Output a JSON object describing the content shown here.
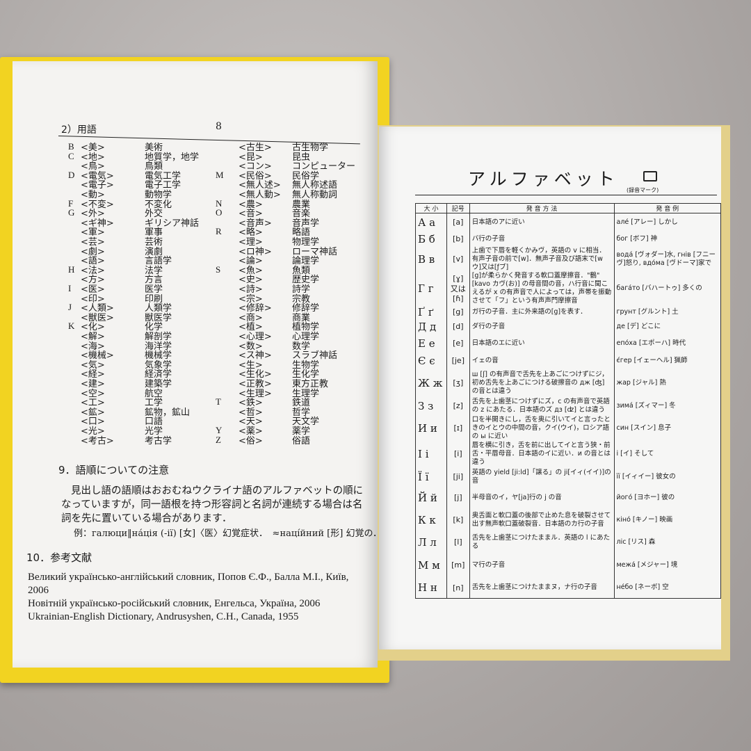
{
  "left_page": {
    "page_number": "8",
    "section_heading": "2）用語",
    "column_1": [
      {
        "letter": "B",
        "abbr": "<美>",
        "meaning": "美術"
      },
      {
        "letter": "C",
        "abbr": "<地>",
        "meaning": "地質学，地学"
      },
      {
        "abbr": "<鳥>",
        "meaning": "鳥類"
      },
      {
        "letter": "D",
        "abbr": "<電気>",
        "meaning": "電気工学"
      },
      {
        "abbr": "<電子>",
        "meaning": "電子工学"
      },
      {
        "abbr": "<動>",
        "meaning": "動物学"
      },
      {
        "letter": "F",
        "abbr": "<不変>",
        "meaning": "不変化"
      },
      {
        "letter": "G",
        "abbr": "<外>",
        "meaning": "外交"
      },
      {
        "abbr": "<ギ神>",
        "meaning": "ギリシア神話"
      },
      {
        "abbr": "<軍>",
        "meaning": "軍事"
      },
      {
        "abbr": "<芸>",
        "meaning": "芸術"
      },
      {
        "abbr": "<劇>",
        "meaning": "演劇"
      },
      {
        "abbr": "<語>",
        "meaning": "言語学"
      },
      {
        "letter": "H",
        "abbr": "<法>",
        "meaning": "法学"
      },
      {
        "abbr": "<方>",
        "meaning": "方言"
      },
      {
        "letter": "I",
        "abbr": "<医>",
        "meaning": "医学"
      },
      {
        "abbr": "<印>",
        "meaning": "印刷"
      },
      {
        "letter": "J",
        "abbr": "<人類>",
        "meaning": "人類学"
      },
      {
        "abbr": "<獣医>",
        "meaning": "獣医学"
      },
      {
        "letter": "K",
        "abbr": "<化>",
        "meaning": "化学"
      },
      {
        "abbr": "<解>",
        "meaning": "解剖学"
      },
      {
        "abbr": "<海>",
        "meaning": "海洋学"
      },
      {
        "abbr": "<機械>",
        "meaning": "機械学"
      },
      {
        "abbr": "<気>",
        "meaning": "気象学"
      },
      {
        "abbr": "<経>",
        "meaning": "経済学"
      },
      {
        "abbr": "<建>",
        "meaning": "建築学"
      },
      {
        "abbr": "<空>",
        "meaning": "航空"
      },
      {
        "abbr": "<工>",
        "meaning": "工学"
      },
      {
        "abbr": "<鉱>",
        "meaning": "鉱物，鉱山"
      },
      {
        "abbr": "<口>",
        "meaning": "口語"
      },
      {
        "abbr": "<光>",
        "meaning": "光学"
      },
      {
        "abbr": "<考古>",
        "meaning": "考古学"
      }
    ],
    "column_2": [
      {
        "abbr": "<古生>",
        "meaning": "古生物学"
      },
      {
        "abbr": "<昆>",
        "meaning": "昆虫"
      },
      {
        "abbr": "<コン>",
        "meaning": "コンピューター"
      },
      {
        "letter": "M",
        "abbr": "<民俗>",
        "meaning": "民俗学"
      },
      {
        "abbr": "<無人述>",
        "meaning": "無人称述語"
      },
      {
        "abbr": "<無人動>",
        "meaning": "無人称動詞"
      },
      {
        "letter": "N",
        "abbr": "<農>",
        "meaning": "農業"
      },
      {
        "letter": "O",
        "abbr": "<音>",
        "meaning": "音楽"
      },
      {
        "abbr": "<音声>",
        "meaning": "音声学"
      },
      {
        "letter": "R",
        "abbr": "<略>",
        "meaning": "略語"
      },
      {
        "abbr": "<理>",
        "meaning": "物理学"
      },
      {
        "abbr": "<ロ神>",
        "meaning": "ローマ神話"
      },
      {
        "abbr": "<論>",
        "meaning": "論理学"
      },
      {
        "letter": "S",
        "abbr": "<魚>",
        "meaning": "魚類"
      },
      {
        "abbr": "<史>",
        "meaning": "歴史学"
      },
      {
        "abbr": "<詩>",
        "meaning": "詩学"
      },
      {
        "abbr": "<宗>",
        "meaning": "宗教"
      },
      {
        "abbr": "<修辞>",
        "meaning": "修辞学"
      },
      {
        "abbr": "<商>",
        "meaning": "商業"
      },
      {
        "abbr": "<植>",
        "meaning": "植物学"
      },
      {
        "abbr": "<心理>",
        "meaning": "心理学"
      },
      {
        "abbr": "<数>",
        "meaning": "数学"
      },
      {
        "abbr": "<ス神>",
        "meaning": "スラブ神話"
      },
      {
        "abbr": "<生>",
        "meaning": "生物学"
      },
      {
        "abbr": "<生化>",
        "meaning": "生化学"
      },
      {
        "abbr": "<正教>",
        "meaning": "東方正教"
      },
      {
        "abbr": "<生理>",
        "meaning": "生理学"
      },
      {
        "letter": "T",
        "abbr": "<鉄>",
        "meaning": "鉄道"
      },
      {
        "abbr": "<哲>",
        "meaning": "哲学"
      },
      {
        "abbr": "<天>",
        "meaning": "天文学"
      },
      {
        "letter": "Y",
        "abbr": "<薬>",
        "meaning": "薬学"
      },
      {
        "letter": "Z",
        "abbr": "<俗>",
        "meaning": "俗語"
      }
    ],
    "section_9_heading": "9．語順についての注意",
    "section_9_text": "見出し語の語順はおおむねウクライナ語のアルファベットの順になっていますが，同一語根を持つ形容詞と名詞が連続する場合は名詞を先に置いている場合があります．",
    "section_9_example": "例：галюци‖на́ція (-ії) [女]〈医〉幻覚症状．　≈наці́йний [形] 幻覚の．",
    "section_10_heading": "10．参考文献",
    "references": [
      "Великий українсько-англійський словник, Попов Є.Ф., Балла М.І., Київ, 2006",
      "Новітній українсько-російський словник, Енгельса, Україна, 2006",
      "Ukrainian-English Dictionary, Andrusyshen, C.H., Canada, 1955"
    ]
  },
  "right_page": {
    "title": "アルファベット",
    "icon_label": "(録音マーク)",
    "table": {
      "headers": [
        "大 小",
        "記号",
        "発 音 方 法",
        "発 音 例"
      ],
      "rows": [
        [
          "А а",
          "[a]",
          "日本語のアに近い",
          "але́ [アレー] しかし"
        ],
        [
          "Б б",
          "[b]",
          "バ行の子音",
          "бог [ボフ] 神"
        ],
        [
          "В в",
          "[v]",
          "上歯で下唇を軽くかみヴ，英語の v に相当．有声子音の前で[w]．無声子音及び語末で[wウ]又は[ƒブ]",
          "вода́ [ヴォダー]水, гнів [フニーヴ]怒り, вдо́ма [ヴドーマ]家で"
        ],
        [
          "Г г",
          "[ɣ] 又は [ɦ]",
          "[g]が柔らかく発音する軟口蓋摩擦音．\"鶴\" [kavo カヴ(お)] の母音間の音，ハ行音に聞こえるが x の有声音で人によっては，声帯を振動させて「フ」という有声声門摩擦音",
          "бага́то [バハートゥ] 多くの"
        ],
        [
          "Ґ ґ",
          "[g]",
          "ガ行の子音．主に外来語の[g]を表す．",
          "грунт [グルント] 土"
        ],
        [
          "Д д",
          "[d]",
          "ダ行の子音",
          "де [デ] どこに"
        ],
        [
          "Е е",
          "[e]",
          "日本語のエに近い",
          "епо́ха [エポーハ] 時代"
        ],
        [
          "Є є",
          "[je]",
          "イェの音",
          "є́гер [イェーヘル] 猟師"
        ],
        [
          "Ж ж",
          "[ʒ]",
          "ш [ʃ] の有声音で舌先を上あごにつけずにジ，初め舌先を上あごにつける破擦音の дж [ʤ] の音とは違う",
          "жар [ジャル] 熱"
        ],
        [
          "З з",
          "[z]",
          "舌先を上歯茎につけずにズ，с の有声音で英語の z にあたる．日本語のズ дз [ʣ] とは違う",
          "зима́ [ズィマー] 冬"
        ],
        [
          "И и",
          "[ɪ]",
          "口を半開きにし，舌を奥に引いてイと言ったときのイとウの中間の音，クイ(ウイ)，ロシア語の ы に近い",
          "син [スイン] 息子"
        ],
        [
          "І і",
          "[i]",
          "唇を横に引き，舌を前に出してイと言う狭・前舌・平唇母音．日本語のイに近い．и の音とは違う",
          "і [イ] そして"
        ],
        [
          "Ї ї",
          "[ji]",
          "英語の yield [ji:ld]「譲る」の ji[イィ(イイ)]の音",
          "її [イィイー] 彼女の"
        ],
        [
          "Й й",
          "[j]",
          "半母音のイ，ヤ[ja]行の j の音",
          "його́ [ヨホー] 彼の"
        ],
        [
          "К к",
          "[k]",
          "奥舌面と軟口蓋の後部で止めた息を破裂させて出す無声軟口蓋破裂音．日本語のカ行の子音",
          "кіно́ [キノー] 映画"
        ],
        [
          "Л л",
          "[l]",
          "舌先を上歯茎につけたままル．英語の l にあたる",
          "ліс [リス] 森"
        ],
        [
          "М м",
          "[m]",
          "マ行の子音",
          "межа́ [メジャー] 境"
        ],
        [
          "Н н",
          "[n]",
          "舌先を上歯茎につけたままヌ，ナ行の子音",
          "не́бо [ネーボ] 空"
        ]
      ]
    }
  }
}
